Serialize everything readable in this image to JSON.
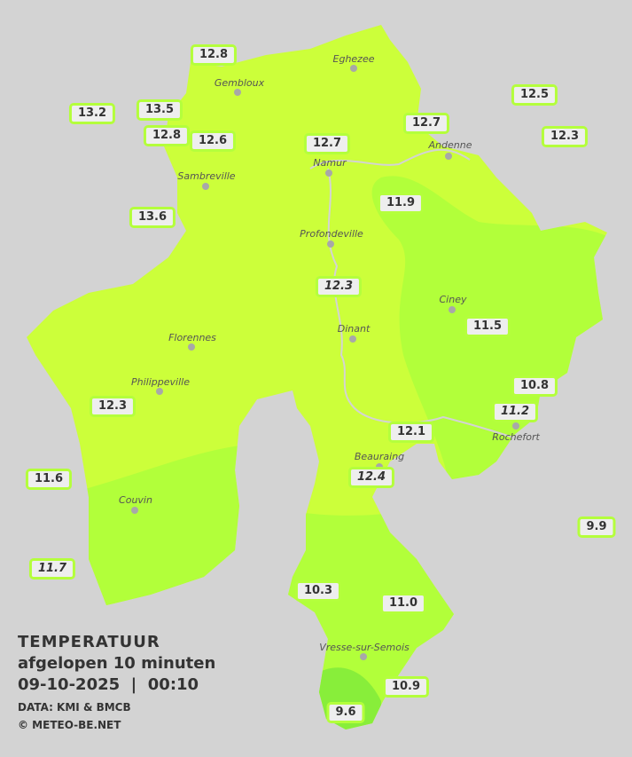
{
  "legend": {
    "title": "TEMPERATUUR",
    "subtitle": "afgelopen 10 minuten",
    "datetime": "09-10-2025  |  00:10",
    "source": "DATA: KMI & BMCB",
    "copyright": "© METEO-BE.NET"
  },
  "colors": {
    "background": "#d3d3d3",
    "zone_12_plus": "#ccff3a",
    "zone_11": "#b2ff3a",
    "zone_10": "#88ee3a",
    "label_border": "#b4ff3c"
  },
  "cities": [
    {
      "name": "Eghezee"
    },
    {
      "name": "Gembloux"
    },
    {
      "name": "Andenne"
    },
    {
      "name": "Namur"
    },
    {
      "name": "Sambreville"
    },
    {
      "name": "Profondeville"
    },
    {
      "name": "Ciney"
    },
    {
      "name": "Dinant"
    },
    {
      "name": "Florennes"
    },
    {
      "name": "Philippeville"
    },
    {
      "name": "Rochefort"
    },
    {
      "name": "Beauraing"
    },
    {
      "name": "Couvin"
    },
    {
      "name": "Vresse-sur-Semois"
    }
  ],
  "readings": [
    {
      "value": "12.8"
    },
    {
      "value": "12.5"
    },
    {
      "value": "13.2"
    },
    {
      "value": "13.5"
    },
    {
      "value": "12.8"
    },
    {
      "value": "12.6"
    },
    {
      "value": "12.7"
    },
    {
      "value": "12.7"
    },
    {
      "value": "12.3"
    },
    {
      "value": "11.9"
    },
    {
      "value": "13.6"
    },
    {
      "value": "12.3"
    },
    {
      "value": "11.5"
    },
    {
      "value": "10.8"
    },
    {
      "value": "11.2"
    },
    {
      "value": "12.3"
    },
    {
      "value": "12.1"
    },
    {
      "value": "12.4"
    },
    {
      "value": "11.6"
    },
    {
      "value": "9.9"
    },
    {
      "value": "11.7"
    },
    {
      "value": "10.3"
    },
    {
      "value": "11.0"
    },
    {
      "value": "10.9"
    },
    {
      "value": "9.6"
    }
  ]
}
